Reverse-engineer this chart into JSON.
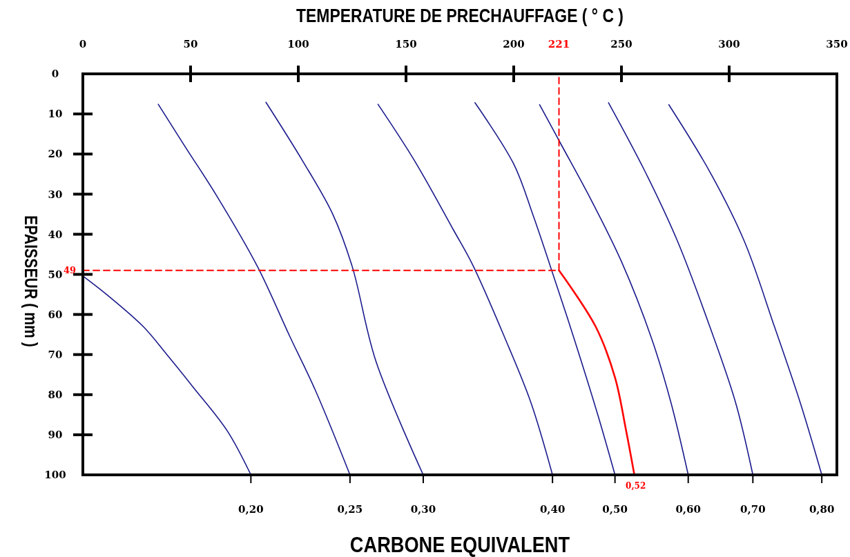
{
  "chart_data": {
    "type": "line",
    "xlabel": "TEMPERATURE DE PRECHAUFFAGE ( °  C )",
    "ylabel": "EPAISSEUR ( mm )",
    "xlim": [
      0,
      350
    ],
    "ylim": [
      100,
      0
    ],
    "xticks": [
      0,
      50,
      100,
      150,
      200,
      250,
      300,
      350
    ],
    "yticks": [
      0,
      10,
      20,
      30,
      40,
      50,
      60,
      70,
      80,
      90,
      100
    ],
    "series": [
      {
        "color": "#1a1a8c",
        "x": [
          0,
          11,
          28,
          39,
          51,
          67,
          78
        ],
        "values": [
          50.4,
          55,
          63,
          70,
          78,
          89,
          100
        ]
      },
      {
        "color": "#1a1a8c",
        "x": [
          35,
          48,
          62,
          81,
          96,
          108,
          124
        ],
        "values": [
          7.6,
          18.6,
          30.3,
          48,
          65.4,
          79,
          100
        ]
      },
      {
        "color": "#1a1a8c",
        "x": [
          85,
          102,
          116,
          125,
          136,
          158
        ],
        "values": [
          7.1,
          21.7,
          35,
          48,
          71.6,
          100
        ]
      },
      {
        "color": "#1a1a8c",
        "x": [
          137,
          154,
          172,
          181,
          196,
          208,
          218
        ],
        "values": [
          7.6,
          21.7,
          38.9,
          47.7,
          66,
          82,
          100
        ]
      },
      {
        "color": "#1a1a8c",
        "x": [
          182,
          200,
          209,
          217,
          228,
          239,
          247
        ],
        "values": [
          7.2,
          22.5,
          35.3,
          48,
          66,
          85,
          100
        ]
      },
      {
        "color": "#1a1a8c",
        "x": [
          212,
          222,
          236,
          250,
          264,
          273,
          281
        ],
        "values": [
          7.7,
          17.6,
          31.5,
          46.8,
          66,
          82,
          100
        ]
      },
      {
        "color": "#1a1a8c",
        "x": [
          244,
          261,
          276,
          291,
          303,
          311
        ],
        "values": [
          7.2,
          24.4,
          41.7,
          63,
          82,
          100
        ]
      },
      {
        "color": "#1a1a8c",
        "x": [
          272,
          291,
          307,
          321,
          333,
          343
        ],
        "values": [
          7.7,
          24.4,
          41.7,
          63,
          82,
          100
        ]
      },
      {
        "color": "#ff0000",
        "x": [
          221,
          238,
          247,
          252,
          256
        ],
        "values": [
          49,
          63,
          75.7,
          88.5,
          100
        ]
      },
      {
        "color": "#ff0000",
        "line_style": "dashed",
        "x": [
          0,
          221,
          221
        ],
        "values": [
          49,
          49,
          0
        ]
      }
    ],
    "annotations": [
      "CARBONE EQUIVALENT",
      {
        "text": "0,20",
        "x": 78,
        "y": 100
      },
      {
        "text": "0,25",
        "x": 124,
        "y": 100
      },
      {
        "text": "0,30",
        "x": 158,
        "y": 100
      },
      {
        "text": "0,40",
        "x": 218,
        "y": 100
      },
      {
        "text": "0,50",
        "x": 247,
        "y": 100
      },
      {
        "text": "0,60",
        "x": 281,
        "y": 100
      },
      {
        "text": "0,70",
        "x": 311,
        "y": 100
      },
      {
        "text": "0,80",
        "x": 343,
        "y": 100
      },
      {
        "text": "221",
        "x": 221,
        "y": 0
      },
      {
        "text": "49",
        "x": 0,
        "y": 49
      },
      {
        "text": "0,52",
        "x": 256,
        "y": 100
      }
    ]
  }
}
